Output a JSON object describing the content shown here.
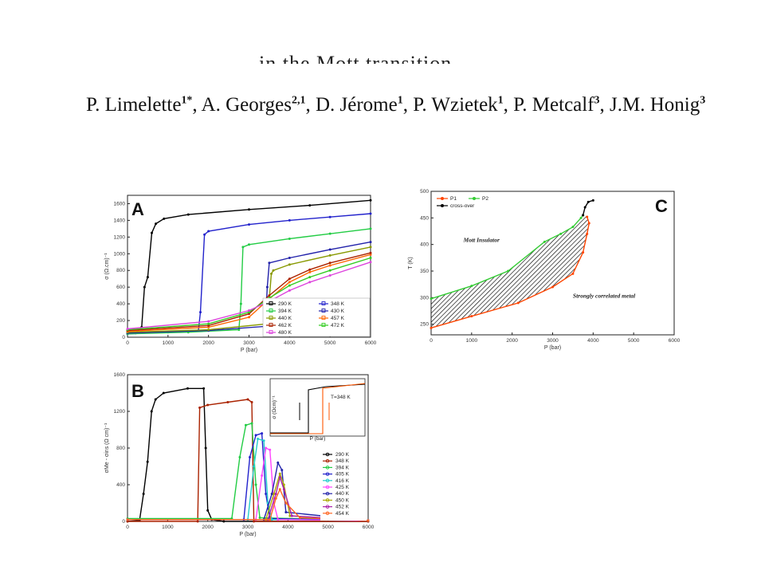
{
  "header": {
    "title_partial": "in the Mott transition",
    "authors": [
      {
        "name": "P. Limelette",
        "sup": "1*"
      },
      {
        "name": "A. Georges",
        "sup": "2,1"
      },
      {
        "name": "D. Jérome",
        "sup": "1"
      },
      {
        "name": "P. Wzietek",
        "sup": "1"
      },
      {
        "name": "P. Metcalf",
        "sup": "3"
      },
      {
        "name": "J.M. Honig",
        "sup": "3"
      }
    ]
  },
  "chart_data": [
    {
      "panel": "A",
      "type": "line",
      "xlabel": "P (bar)",
      "ylabel": "σ (Ω.cm)⁻¹",
      "xlim": [
        0,
        6000
      ],
      "ylim": [
        0,
        1700
      ],
      "xticks": [
        0,
        1000,
        2000,
        3000,
        4000,
        5000,
        6000
      ],
      "yticks": [
        0,
        200,
        400,
        600,
        800,
        1000,
        1200,
        1400,
        1600
      ],
      "legend_position": "bottom-right",
      "series": [
        {
          "name": "290 K",
          "color": "#000000",
          "marker": "square",
          "points": [
            [
              0,
              40
            ],
            [
              200,
              50
            ],
            [
              350,
              120
            ],
            [
              420,
              600
            ],
            [
              500,
              720
            ],
            [
              600,
              1250
            ],
            [
              700,
              1360
            ],
            [
              900,
              1420
            ],
            [
              1500,
              1470
            ],
            [
              3000,
              1530
            ],
            [
              4500,
              1580
            ],
            [
              6000,
              1640
            ]
          ]
        },
        {
          "name": "348 K",
          "color": "#2222cc",
          "marker": "triangle-up",
          "points": [
            [
              0,
              40
            ],
            [
              1000,
              60
            ],
            [
              1750,
              80
            ],
            [
              1800,
              300
            ],
            [
              1900,
              1230
            ],
            [
              2000,
              1270
            ],
            [
              3000,
              1350
            ],
            [
              4000,
              1400
            ],
            [
              5000,
              1440
            ],
            [
              6000,
              1480
            ]
          ]
        },
        {
          "name": "394 K",
          "color": "#22cc44",
          "marker": "triangle-down",
          "points": [
            [
              0,
              40
            ],
            [
              1500,
              60
            ],
            [
              2750,
              90
            ],
            [
              2800,
              400
            ],
            [
              2850,
              1080
            ],
            [
              3000,
              1110
            ],
            [
              4000,
              1180
            ],
            [
              5000,
              1240
            ],
            [
              6000,
              1300
            ]
          ]
        },
        {
          "name": "430 K",
          "color": "#2222aa",
          "marker": "circle",
          "points": [
            [
              0,
              50
            ],
            [
              2000,
              80
            ],
            [
              3400,
              130
            ],
            [
              3450,
              600
            ],
            [
              3500,
              890
            ],
            [
              4000,
              950
            ],
            [
              5000,
              1050
            ],
            [
              6000,
              1140
            ]
          ]
        },
        {
          "name": "440 K",
          "color": "#889900",
          "marker": "triangle-left",
          "points": [
            [
              0,
              60
            ],
            [
              2000,
              90
            ],
            [
              3450,
              160
            ],
            [
              3550,
              760
            ],
            [
              3600,
              800
            ],
            [
              4000,
              870
            ],
            [
              5000,
              980
            ],
            [
              6000,
              1080
            ]
          ]
        },
        {
          "name": "457 K",
          "color": "#ff6600",
          "marker": "triangle-right",
          "points": [
            [
              0,
              70
            ],
            [
              2000,
              120
            ],
            [
              3000,
              240
            ],
            [
              3500,
              460
            ],
            [
              4000,
              660
            ],
            [
              4500,
              780
            ],
            [
              5000,
              860
            ],
            [
              6000,
              990
            ]
          ]
        },
        {
          "name": "462 K",
          "color": "#aa2200",
          "marker": "circle",
          "points": [
            [
              0,
              80
            ],
            [
              2000,
              140
            ],
            [
              3000,
              280
            ],
            [
              3500,
              500
            ],
            [
              4000,
              700
            ],
            [
              4500,
              810
            ],
            [
              5000,
              890
            ],
            [
              6000,
              1010
            ]
          ]
        },
        {
          "name": "472 K",
          "color": "#33cc22",
          "marker": "star",
          "points": [
            [
              0,
              90
            ],
            [
              2000,
              160
            ],
            [
              3000,
              300
            ],
            [
              3500,
              470
            ],
            [
              4000,
              620
            ],
            [
              4500,
              720
            ],
            [
              5000,
              800
            ],
            [
              6000,
              950
            ]
          ]
        },
        {
          "name": "480 K",
          "color": "#dd44dd",
          "marker": "diamond",
          "points": [
            [
              0,
              100
            ],
            [
              2000,
              190
            ],
            [
              3000,
              320
            ],
            [
              3500,
              430
            ],
            [
              4000,
              560
            ],
            [
              4500,
              660
            ],
            [
              5000,
              740
            ],
            [
              6000,
              900
            ]
          ]
        }
      ]
    },
    {
      "panel": "B",
      "type": "line",
      "xlabel": "P (bar)",
      "ylabel": "σMe - σins (Ω cm)⁻¹",
      "xlim": [
        0,
        6000
      ],
      "ylim": [
        0,
        1600
      ],
      "xticks": [
        0,
        1000,
        2000,
        3000,
        4000,
        5000,
        6000
      ],
      "yticks": [
        0,
        400,
        800,
        1200,
        1600
      ],
      "legend_position": "bottom-right",
      "inset": {
        "label": "T=348 K",
        "xlabel": "P (bar)",
        "ylabel": "σ (Ωcm)⁻¹"
      },
      "series": [
        {
          "name": "290 K",
          "color": "#000000",
          "points": [
            [
              0,
              0
            ],
            [
              300,
              10
            ],
            [
              400,
              300
            ],
            [
              500,
              650
            ],
            [
              600,
              1200
            ],
            [
              700,
              1330
            ],
            [
              900,
              1400
            ],
            [
              1500,
              1450
            ],
            [
              1900,
              1450
            ],
            [
              1950,
              800
            ],
            [
              2000,
              120
            ],
            [
              2100,
              20
            ],
            [
              2400,
              0
            ],
            [
              6000,
              0
            ]
          ]
        },
        {
          "name": "348 K",
          "color": "#aa2200",
          "points": [
            [
              0,
              0
            ],
            [
              1750,
              0
            ],
            [
              1800,
              1240
            ],
            [
              2000,
              1270
            ],
            [
              2500,
              1300
            ],
            [
              3000,
              1330
            ],
            [
              3100,
              1300
            ],
            [
              3150,
              0
            ],
            [
              6000,
              0
            ]
          ]
        },
        {
          "name": "394 K",
          "color": "#22cc44",
          "points": [
            [
              0,
              30
            ],
            [
              2600,
              30
            ],
            [
              2800,
              700
            ],
            [
              2950,
              1050
            ],
            [
              3100,
              1070
            ],
            [
              3200,
              400
            ],
            [
              3300,
              40
            ],
            [
              6000,
              10
            ]
          ]
        },
        {
          "name": "405 K",
          "color": "#2222cc",
          "points": [
            [
              0,
              20
            ],
            [
              2900,
              20
            ],
            [
              3050,
              700
            ],
            [
              3200,
              940
            ],
            [
              3350,
              960
            ],
            [
              3450,
              300
            ],
            [
              3550,
              30
            ],
            [
              6000,
              10
            ]
          ]
        },
        {
          "name": "416 K",
          "color": "#22cccc",
          "points": [
            [
              0,
              20
            ],
            [
              3000,
              20
            ],
            [
              3150,
              600
            ],
            [
              3250,
              900
            ],
            [
              3400,
              880
            ],
            [
              3500,
              200
            ],
            [
              3600,
              20
            ],
            [
              6000,
              10
            ]
          ]
        },
        {
          "name": "425 K",
          "color": "#ff44ff",
          "points": [
            [
              0,
              20
            ],
            [
              3200,
              20
            ],
            [
              3350,
              500
            ],
            [
              3450,
              800
            ],
            [
              3550,
              780
            ],
            [
              3650,
              200
            ],
            [
              3750,
              20
            ],
            [
              6000,
              10
            ]
          ]
        },
        {
          "name": "440 K",
          "color": "#2222aa",
          "points": [
            [
              0,
              20
            ],
            [
              3400,
              20
            ],
            [
              3600,
              300
            ],
            [
              3750,
              640
            ],
            [
              3850,
              560
            ],
            [
              3950,
              100
            ],
            [
              6000,
              10
            ]
          ]
        },
        {
          "name": "450 K",
          "color": "#aaaa00",
          "points": [
            [
              0,
              20
            ],
            [
              3450,
              20
            ],
            [
              3650,
              300
            ],
            [
              3800,
              520
            ],
            [
              3900,
              400
            ],
            [
              4050,
              60
            ],
            [
              6000,
              10
            ]
          ]
        },
        {
          "name": "452 K",
          "color": "#aa22aa",
          "points": [
            [
              0,
              20
            ],
            [
              3500,
              20
            ],
            [
              3700,
              300
            ],
            [
              3800,
              480
            ],
            [
              3900,
              350
            ],
            [
              4100,
              60
            ],
            [
              6000,
              10
            ]
          ]
        },
        {
          "name": "454 K",
          "color": "#ff6622",
          "points": [
            [
              0,
              20
            ],
            [
              3550,
              20
            ],
            [
              3700,
              250
            ],
            [
              3800,
              350
            ],
            [
              3950,
              200
            ],
            [
              4300,
              40
            ],
            [
              6000,
              10
            ]
          ]
        }
      ]
    },
    {
      "panel": "C",
      "type": "line",
      "xlabel": "P (bar)",
      "ylabel": "T (K)",
      "xlim": [
        0,
        6000
      ],
      "ylim": [
        230,
        500
      ],
      "xticks": [
        0,
        1000,
        2000,
        3000,
        4000,
        5000,
        6000
      ],
      "yticks": [
        250,
        300,
        350,
        400,
        450,
        500
      ],
      "legend_position": "top-left",
      "annotations": [
        "Mott Insulator",
        "Strongly correlated metal"
      ],
      "series": [
        {
          "name": "P1",
          "color": "#ff4400",
          "marker": "circle",
          "points": [
            [
              0,
              243
            ],
            [
              1000,
              265
            ],
            [
              2150,
              290
            ],
            [
              3000,
              320
            ],
            [
              3500,
              345
            ],
            [
              3750,
              385
            ],
            [
              3850,
              420
            ],
            [
              3900,
              440
            ],
            [
              3850,
              452
            ]
          ]
        },
        {
          "name": "P2",
          "color": "#33cc33",
          "marker": "circle",
          "points": [
            [
              0,
              298
            ],
            [
              1000,
              322
            ],
            [
              1900,
              350
            ],
            [
              2800,
              405
            ],
            [
              3200,
              420
            ],
            [
              3500,
              433
            ],
            [
              3700,
              450
            ],
            [
              3750,
              455
            ]
          ]
        },
        {
          "name": "cross-over",
          "color": "#000000",
          "marker": "circle",
          "points": [
            [
              3750,
              455
            ],
            [
              3800,
              470
            ],
            [
              3880,
              480
            ],
            [
              4000,
              483
            ]
          ]
        }
      ]
    }
  ]
}
